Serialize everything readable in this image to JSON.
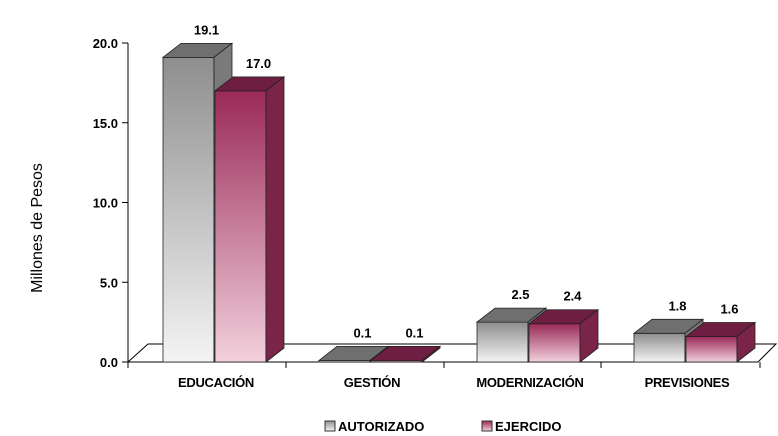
{
  "chart_data": {
    "type": "bar",
    "title": "",
    "xlabel": "",
    "ylabel": "Millones de Pesos",
    "ylim": [
      0,
      20
    ],
    "yticks": [
      "0.0",
      "5.0",
      "10.0",
      "15.0",
      "20.0"
    ],
    "categories": [
      "EDUCACIÓN",
      "GESTIÓN",
      "MODERNIZACIÓN",
      "PREVISIONES"
    ],
    "series": [
      {
        "name": "AUTORIZADO",
        "values": [
          19.1,
          0.1,
          2.5,
          1.8
        ],
        "labels": [
          "19.1",
          "0.1",
          "2.5",
          "1.8"
        ],
        "color": "#9a9a9a"
      },
      {
        "name": "EJERCIDO",
        "values": [
          17.0,
          0.1,
          2.4,
          1.6
        ],
        "labels": [
          "17.0",
          "0.1",
          "2.4",
          "1.6"
        ],
        "color": "#a3365f"
      }
    ],
    "grid": false,
    "legend_position": "bottom",
    "style": "3d"
  }
}
